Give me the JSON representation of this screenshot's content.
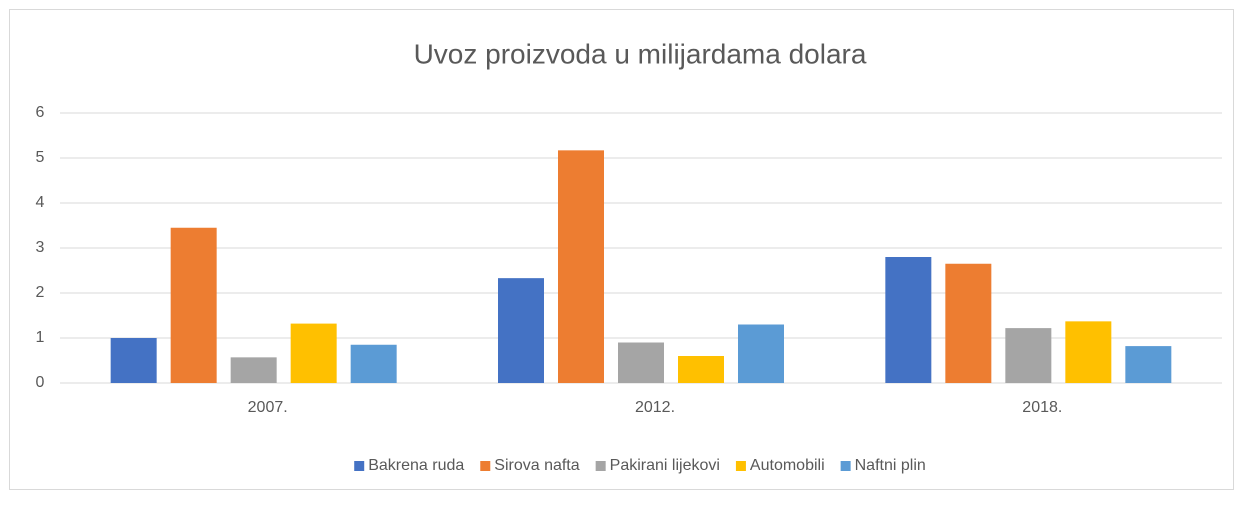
{
  "chart_data": {
    "type": "bar",
    "title": "Uvoz proizvoda u milijardama dolara",
    "categories": [
      "2007.",
      "2012.",
      "2018."
    ],
    "series": [
      {
        "name": "Bakrena ruda",
        "color": "#4472c4",
        "values": [
          1.0,
          2.33,
          2.8
        ]
      },
      {
        "name": "Sirova nafta",
        "color": "#ed7d31",
        "values": [
          3.45,
          5.17,
          2.65
        ]
      },
      {
        "name": "Pakirani lijekovi",
        "color": "#a5a5a5",
        "values": [
          0.57,
          0.9,
          1.22
        ]
      },
      {
        "name": "Automobili",
        "color": "#ffc000",
        "values": [
          1.32,
          0.6,
          1.37
        ]
      },
      {
        "name": "Naftni plin",
        "color": "#5b9bd5",
        "values": [
          0.85,
          1.3,
          0.82
        ]
      }
    ],
    "ylim": [
      0,
      6
    ],
    "yticks": [
      0,
      1,
      2,
      3,
      4,
      5,
      6
    ],
    "grid": true,
    "legend": "bottom"
  }
}
